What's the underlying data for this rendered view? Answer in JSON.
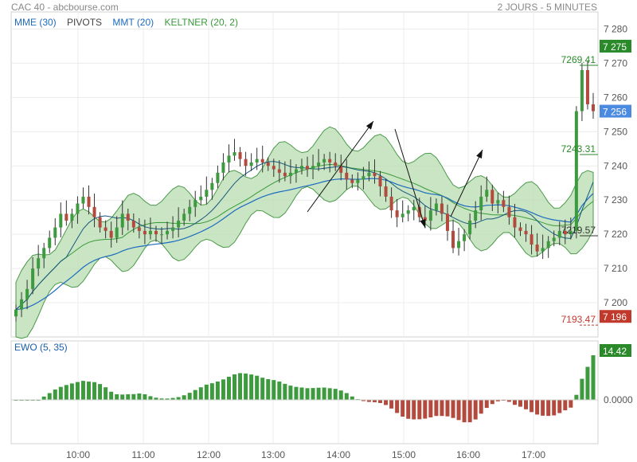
{
  "header": {
    "title": "CAC 40 - abcbourse.com",
    "period": "2 JOURS - 5 MINUTES"
  },
  "legend": [
    {
      "label": "MME (30)",
      "color": "#1e6bbf"
    },
    {
      "label": "PIVOTS",
      "color": "#444444"
    },
    {
      "label": "MMT (20)",
      "color": "#1e6bbf"
    },
    {
      "label": "KELTNER (20, 2)",
      "color": "#3a9a3a"
    }
  ],
  "ewo": {
    "label": "EWO (5, 35)",
    "last": "14.42",
    "zero_label": "0.0000"
  },
  "colors": {
    "up": "#3e9a3e",
    "down": "#b24a3e",
    "band": "#b8dcb0",
    "ma": "#1e6bbf",
    "last_up": "#2a8a2a",
    "last_price": "#4a8ae0",
    "low_red": "#c0392b"
  },
  "chart_data": {
    "type": "candlestick",
    "ylim": [
      7190,
      7285
    ],
    "yticks": [
      "7 200",
      "7 210",
      "7 220",
      "7 230",
      "7 240",
      "7 250",
      "7 260",
      "7 270",
      "7 280"
    ],
    "xticks": [
      "10:00",
      "11:00",
      "12:00",
      "13:00",
      "14:00",
      "15:00",
      "16:00",
      "17:00"
    ],
    "price_labels": [
      {
        "text": "7 275",
        "value": 7275,
        "color": "#2a8a2a"
      },
      {
        "text": "7 256",
        "value": 7256,
        "color": "#4a8ae0"
      },
      {
        "text": "7 196",
        "value": 7196,
        "color": "#c0392b"
      }
    ],
    "pivot_labels": [
      {
        "text": "7269.41",
        "value": 7269.41,
        "color": "#2a8a2a"
      },
      {
        "text": "7243.31",
        "value": 7243.31,
        "color": "#2a8a2a"
      },
      {
        "text": "7219.57",
        "value": 7219.57,
        "color": "#333333"
      },
      {
        "text": "7193.47",
        "value": 7193.47,
        "color": "#c0392b"
      }
    ],
    "close": [
      7198,
      7201,
      7204,
      7210,
      7213,
      7216,
      7219,
      7222,
      7226,
      7224,
      7226,
      7229,
      7231,
      7228,
      7225,
      7222,
      7221,
      7219,
      7222,
      7226,
      7224,
      7222,
      7221,
      7220,
      7221,
      7220,
      7220,
      7221,
      7222,
      7224,
      7226,
      7228,
      7230,
      7231,
      7233,
      7235,
      7238,
      7241,
      7243,
      7244,
      7242,
      7240,
      7241,
      7242,
      7241,
      7240,
      7239,
      7238,
      7237,
      7238,
      7239,
      7240,
      7239,
      7240,
      7241,
      7242,
      7241,
      7240,
      7238,
      7236,
      7235,
      7236,
      7237,
      7238,
      7237,
      7234,
      7231,
      7227,
      7225,
      7226,
      7227,
      7228,
      7225,
      7224,
      7227,
      7229,
      7226,
      7221,
      7216,
      7218,
      7220,
      7224,
      7227,
      7231,
      7233,
      7229,
      7230,
      7228,
      7225,
      7222,
      7221,
      7220,
      7217,
      7215,
      7216,
      7218,
      7219,
      7221,
      7220,
      7221,
      7256,
      7268,
      7258,
      7256
    ]
  }
}
